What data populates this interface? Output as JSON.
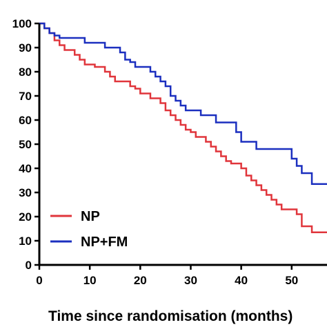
{
  "chart_data": {
    "type": "line",
    "title": "",
    "xlabel": "Time since randomisation (months)",
    "ylabel": "",
    "xlim": [
      0,
      57
    ],
    "ylim": [
      0,
      100
    ],
    "x_ticks": [
      0,
      10,
      20,
      30,
      40,
      50
    ],
    "y_ticks": [
      0,
      10,
      20,
      30,
      40,
      50,
      60,
      70,
      80,
      90,
      100
    ],
    "grid": false,
    "legend_position": "bottom-left",
    "step": true,
    "series": [
      {
        "name": "NP",
        "color": "#e0353b",
        "points": [
          [
            0,
            100
          ],
          [
            1,
            98
          ],
          [
            2,
            96
          ],
          [
            3,
            93
          ],
          [
            4,
            91
          ],
          [
            5,
            89
          ],
          [
            7,
            87
          ],
          [
            8,
            85
          ],
          [
            9,
            83
          ],
          [
            11,
            82
          ],
          [
            13,
            80
          ],
          [
            14,
            78
          ],
          [
            15,
            76
          ],
          [
            18,
            74
          ],
          [
            19,
            73
          ],
          [
            20,
            71
          ],
          [
            22,
            69
          ],
          [
            24,
            67
          ],
          [
            25,
            64
          ],
          [
            26,
            62
          ],
          [
            27,
            60
          ],
          [
            28,
            58
          ],
          [
            29,
            56
          ],
          [
            30,
            55
          ],
          [
            31,
            53
          ],
          [
            33,
            51
          ],
          [
            34,
            49
          ],
          [
            35,
            47
          ],
          [
            36,
            45
          ],
          [
            37,
            43
          ],
          [
            38,
            42
          ],
          [
            40,
            40
          ],
          [
            41,
            37
          ],
          [
            42,
            35
          ],
          [
            43,
            33
          ],
          [
            44,
            31
          ],
          [
            45,
            29
          ],
          [
            46,
            27
          ],
          [
            47,
            25
          ],
          [
            48,
            23
          ],
          [
            51,
            21
          ],
          [
            52,
            16
          ],
          [
            54,
            13.5
          ],
          [
            57,
            13.5
          ]
        ]
      },
      {
        "name": "NP+FM",
        "color": "#1b2fbf",
        "points": [
          [
            0,
            100
          ],
          [
            1,
            98
          ],
          [
            2,
            96
          ],
          [
            3,
            95
          ],
          [
            4,
            94
          ],
          [
            9,
            92
          ],
          [
            13,
            90
          ],
          [
            16,
            88
          ],
          [
            17,
            85
          ],
          [
            18,
            84
          ],
          [
            19,
            82
          ],
          [
            22,
            80
          ],
          [
            23,
            78
          ],
          [
            24,
            76
          ],
          [
            25,
            74
          ],
          [
            26,
            70
          ],
          [
            27,
            68
          ],
          [
            28,
            66
          ],
          [
            29,
            64
          ],
          [
            32,
            62
          ],
          [
            35,
            59
          ],
          [
            39,
            55
          ],
          [
            40,
            51
          ],
          [
            43,
            48
          ],
          [
            50,
            44
          ],
          [
            51,
            41
          ],
          [
            52,
            38
          ],
          [
            54,
            33.5
          ],
          [
            57,
            33.5
          ]
        ]
      }
    ]
  }
}
